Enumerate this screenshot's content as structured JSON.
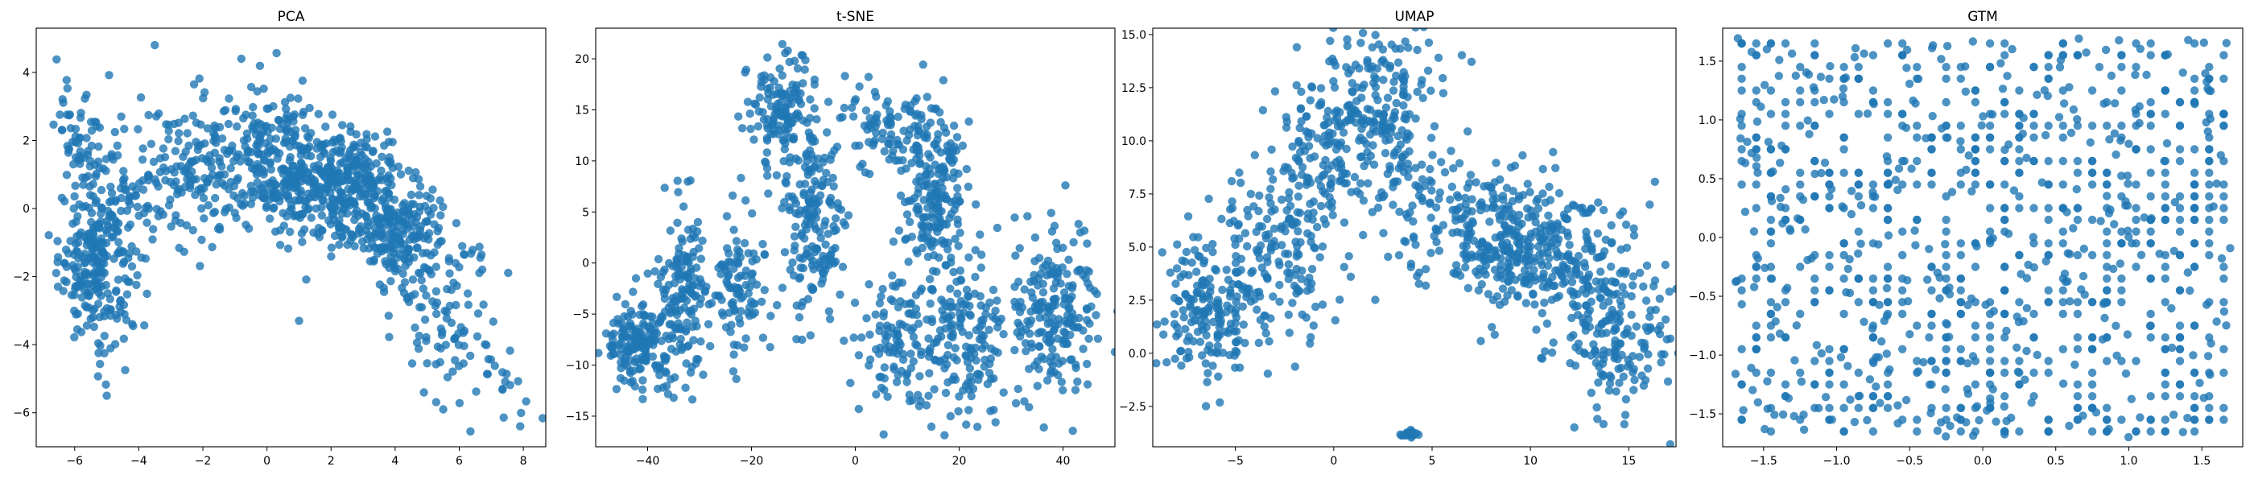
{
  "figure": {
    "marker_color": "#1f77b4",
    "marker_alpha": 0.8
  },
  "chart_data": [
    {
      "type": "scatter",
      "title": "PCA",
      "xlabel": "",
      "ylabel": "",
      "xlim": [
        -7.2,
        8.7
      ],
      "ylim": [
        -7.0,
        5.3
      ],
      "xticks": [
        -6,
        -4,
        -2,
        0,
        2,
        4,
        6,
        8
      ],
      "yticks": [
        -6,
        -4,
        -2,
        0,
        2,
        4
      ],
      "xtick_labels": [
        "−6",
        "−4",
        "−2",
        "0",
        "2",
        "4",
        "6",
        "8"
      ],
      "ytick_labels": [
        "−6",
        "−4",
        "−2",
        "0",
        "2",
        "4"
      ],
      "grid": false,
      "clusters": [
        {
          "cx": -5.3,
          "cy": -1.5,
          "sx": 0.6,
          "sy": 1.2,
          "n": 260
        },
        {
          "cx": -5.7,
          "cy": 2.2,
          "sx": 0.45,
          "sy": 0.8,
          "n": 60
        },
        {
          "cx": -2.5,
          "cy": 1.0,
          "sx": 1.2,
          "sy": 1.1,
          "n": 200
        },
        {
          "cx": 0.3,
          "cy": 1.4,
          "sx": 0.9,
          "sy": 1.0,
          "n": 220
        },
        {
          "cx": 2.4,
          "cy": 0.6,
          "sx": 0.9,
          "sy": 0.9,
          "n": 320
        },
        {
          "cx": 4.2,
          "cy": -0.7,
          "sx": 0.7,
          "sy": 0.8,
          "n": 200
        },
        {
          "cx": 5.8,
          "cy": -3.2,
          "sx": 0.8,
          "sy": 1.0,
          "n": 80
        },
        {
          "cx": 7.2,
          "cy": -5.0,
          "sx": 0.6,
          "sy": 0.7,
          "n": 20
        }
      ],
      "points": [
        [
          -3.5,
          4.8
        ],
        [
          -5.0,
          -5.5
        ],
        [
          7.9,
          -6.4
        ],
        [
          5.5,
          -5.9
        ],
        [
          1.0,
          -3.3
        ],
        [
          -0.8,
          4.4
        ]
      ]
    },
    {
      "type": "scatter",
      "title": "t-SNE",
      "xlabel": "",
      "ylabel": "",
      "xlim": [
        -50,
        50
      ],
      "ylim": [
        -18,
        23
      ],
      "xticks": [
        -40,
        -20,
        0,
        20,
        40
      ],
      "yticks": [
        -15,
        -10,
        -5,
        0,
        5,
        10,
        15,
        20
      ],
      "xtick_labels": [
        "−40",
        "−20",
        "0",
        "20",
        "40"
      ],
      "ytick_labels": [
        "−15",
        "−10",
        "−5",
        "0",
        "5",
        "10",
        "15",
        "20"
      ],
      "grid": false,
      "clusters": [
        {
          "cx": -42,
          "cy": -8,
          "sx": 3.0,
          "sy": 2.0,
          "n": 150
        },
        {
          "cx": -33,
          "cy": -3,
          "sx": 3.0,
          "sy": 4.5,
          "n": 160
        },
        {
          "cx": -22,
          "cy": -2,
          "sx": 2.5,
          "sy": 3.5,
          "n": 100
        },
        {
          "cx": -15,
          "cy": 15,
          "sx": 3.0,
          "sy": 2.5,
          "n": 130
        },
        {
          "cx": -8,
          "cy": 5,
          "sx": 3.0,
          "sy": 5.0,
          "n": 180
        },
        {
          "cx": 5,
          "cy": 13,
          "sx": 4.0,
          "sy": 2.0,
          "n": 80
        },
        {
          "cx": 8,
          "cy": -7,
          "sx": 4.0,
          "sy": 3.5,
          "n": 120
        },
        {
          "cx": 15,
          "cy": 7,
          "sx": 3.0,
          "sy": 5.0,
          "n": 200
        },
        {
          "cx": 22,
          "cy": -8,
          "sx": 4.0,
          "sy": 4.0,
          "n": 150
        },
        {
          "cx": 38,
          "cy": -5,
          "sx": 4.0,
          "sy": 4.0,
          "n": 200
        }
      ],
      "points": [
        [
          -13,
          20.8
        ],
        [
          27,
          -15.6
        ],
        [
          -35,
          -13.2
        ]
      ]
    },
    {
      "type": "scatter",
      "title": "UMAP",
      "xlabel": "",
      "ylabel": "",
      "xlim": [
        -9.2,
        17.4
      ],
      "ylim": [
        -4.4,
        15.3
      ],
      "xticks": [
        -5,
        0,
        5,
        10,
        15
      ],
      "yticks": [
        -2.5,
        0.0,
        2.5,
        5.0,
        7.5,
        10.0,
        12.5,
        15.0
      ],
      "xtick_labels": [
        "−5",
        "0",
        "5",
        "10",
        "15"
      ],
      "ytick_labels": [
        "−2.5",
        "0.0",
        "2.5",
        "5.0",
        "7.5",
        "10.0",
        "12.5",
        "15.0"
      ],
      "grid": false,
      "clusters": [
        {
          "cx": -6.5,
          "cy": 2.0,
          "sx": 1.2,
          "sy": 2.0,
          "n": 170
        },
        {
          "cx": -3.0,
          "cy": 4.5,
          "sx": 1.5,
          "sy": 1.8,
          "n": 150
        },
        {
          "cx": -0.5,
          "cy": 9.5,
          "sx": 1.5,
          "sy": 2.0,
          "n": 150
        },
        {
          "cx": 2.5,
          "cy": 11.5,
          "sx": 1.5,
          "sy": 2.0,
          "n": 180
        },
        {
          "cx": 4.5,
          "cy": 7.0,
          "sx": 1.0,
          "sy": 1.5,
          "n": 60
        },
        {
          "cx": 8.5,
          "cy": 5.5,
          "sx": 2.0,
          "sy": 1.5,
          "n": 240
        },
        {
          "cx": 11.5,
          "cy": 4.0,
          "sx": 2.0,
          "sy": 2.0,
          "n": 200
        },
        {
          "cx": 14.5,
          "cy": 0.5,
          "sx": 1.5,
          "sy": 1.7,
          "n": 140
        },
        {
          "cx": 3.8,
          "cy": -3.8,
          "sx": 0.3,
          "sy": 0.1,
          "n": 25
        }
      ],
      "points": [
        [
          2.5,
          14.3
        ],
        [
          -8.0,
          0.8
        ]
      ]
    },
    {
      "type": "scatter",
      "title": "GTM",
      "xlabel": "",
      "ylabel": "",
      "xlim": [
        -1.78,
        1.78
      ],
      "ylim": [
        -1.78,
        1.78
      ],
      "xticks": [
        -1.5,
        -1.0,
        -0.5,
        0.0,
        0.5,
        1.0,
        1.5
      ],
      "yticks": [
        -1.5,
        -1.0,
        -0.5,
        0.0,
        0.5,
        1.0,
        1.5
      ],
      "xtick_labels": [
        "−1.5",
        "−1.0",
        "−0.5",
        "0.0",
        "0.5",
        "1.0",
        "1.5"
      ],
      "ytick_labels": [
        "−1.5",
        "−1.0",
        "−0.5",
        "0.0",
        "0.5",
        "1.0",
        "1.5"
      ],
      "grid": false,
      "lattice_step": 0.1,
      "lattice_range": [
        -1.65,
        1.65
      ],
      "n_points": 1100
    }
  ]
}
